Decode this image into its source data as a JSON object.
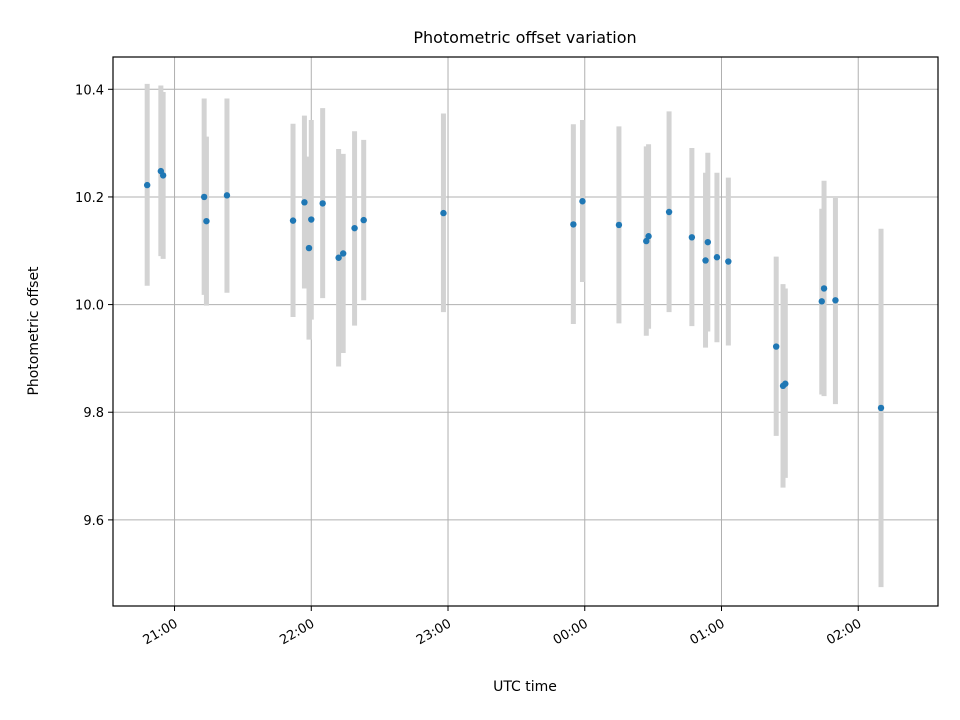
{
  "chart_data": {
    "type": "scatter",
    "title": "Photometric offset variation",
    "xlabel": "UTC time",
    "ylabel": "Photometric offset",
    "x_tick_labels": [
      "21:00",
      "22:00",
      "23:00",
      "00:00",
      "01:00",
      "02:00"
    ],
    "y_tick_labels": [
      "9.6",
      "9.8",
      "10.0",
      "10.2",
      "10.4"
    ],
    "x_ticks": [
      "20:60",
      "22:00",
      "23:00",
      "24:00",
      "25:00",
      "26:00"
    ],
    "y_ticks": [
      9.6,
      9.8,
      10.0,
      10.2,
      10.4
    ],
    "x_range": [
      "20:33",
      "26:35"
    ],
    "ylim": [
      9.44,
      10.46
    ],
    "grid": true,
    "colors": {
      "point": "#1f77b4",
      "errorbar": "#d3d3d3",
      "grid": "#b0b0b0"
    },
    "series": [
      {
        "points": [
          {
            "x": "20:48",
            "y": 10.222,
            "low": 10.035,
            "high": 10.41
          },
          {
            "x": "20:54",
            "y": 10.248,
            "low": 10.09,
            "high": 10.407
          },
          {
            "x": "20:55",
            "y": 10.24,
            "low": 10.085,
            "high": 10.395
          },
          {
            "x": "21:13",
            "y": 10.2,
            "low": 10.018,
            "high": 10.383
          },
          {
            "x": "21:14",
            "y": 10.155,
            "low": 9.998,
            "high": 10.312
          },
          {
            "x": "21:23",
            "y": 10.203,
            "low": 10.022,
            "high": 10.383
          },
          {
            "x": "21:52",
            "y": 10.156,
            "low": 9.977,
            "high": 10.336
          },
          {
            "x": "21:57",
            "y": 10.19,
            "low": 10.03,
            "high": 10.351
          },
          {
            "x": "21:59",
            "y": 10.105,
            "low": 9.935,
            "high": 10.275
          },
          {
            "x": "21:60",
            "y": 10.158,
            "low": 9.972,
            "high": 10.343
          },
          {
            "x": "22:05",
            "y": 10.188,
            "low": 10.012,
            "high": 10.365
          },
          {
            "x": "22:12",
            "y": 10.087,
            "low": 9.885,
            "high": 10.289
          },
          {
            "x": "22:14",
            "y": 10.095,
            "low": 9.91,
            "high": 10.28
          },
          {
            "x": "22:19",
            "y": 10.142,
            "low": 9.961,
            "high": 10.322
          },
          {
            "x": "22:23",
            "y": 10.157,
            "low": 10.008,
            "high": 10.306
          },
          {
            "x": "22:58",
            "y": 10.17,
            "low": 9.986,
            "high": 10.355
          },
          {
            "x": "23:55",
            "y": 10.149,
            "low": 9.964,
            "high": 10.335
          },
          {
            "x": "23:59",
            "y": 10.192,
            "low": 10.042,
            "high": 10.343
          },
          {
            "x": "24:15",
            "y": 10.148,
            "low": 9.965,
            "high": 10.331
          },
          {
            "x": "24:27",
            "y": 10.118,
            "low": 9.942,
            "high": 10.294
          },
          {
            "x": "24:28",
            "y": 10.127,
            "low": 9.955,
            "high": 10.298
          },
          {
            "x": "24:37",
            "y": 10.172,
            "low": 9.986,
            "high": 10.359
          },
          {
            "x": "24:47",
            "y": 10.125,
            "low": 9.96,
            "high": 10.291
          },
          {
            "x": "24:53",
            "y": 10.082,
            "low": 9.92,
            "high": 10.245
          },
          {
            "x": "24:54",
            "y": 10.116,
            "low": 9.95,
            "high": 10.282
          },
          {
            "x": "24:58",
            "y": 10.088,
            "low": 9.93,
            "high": 10.245
          },
          {
            "x": "25:03",
            "y": 10.08,
            "low": 9.924,
            "high": 10.236
          },
          {
            "x": "25:24",
            "y": 9.922,
            "low": 9.756,
            "high": 10.089
          },
          {
            "x": "25:27",
            "y": 9.849,
            "low": 9.66,
            "high": 10.038
          },
          {
            "x": "25:28",
            "y": 9.853,
            "low": 9.678,
            "high": 10.03
          },
          {
            "x": "25:44",
            "y": 10.006,
            "low": 9.833,
            "high": 10.178
          },
          {
            "x": "25:45",
            "y": 10.03,
            "low": 9.83,
            "high": 10.23
          },
          {
            "x": "25:50",
            "y": 10.008,
            "low": 9.815,
            "high": 10.198
          },
          {
            "x": "26:10",
            "y": 9.808,
            "low": 9.475,
            "high": 10.141
          }
        ]
      }
    ]
  }
}
